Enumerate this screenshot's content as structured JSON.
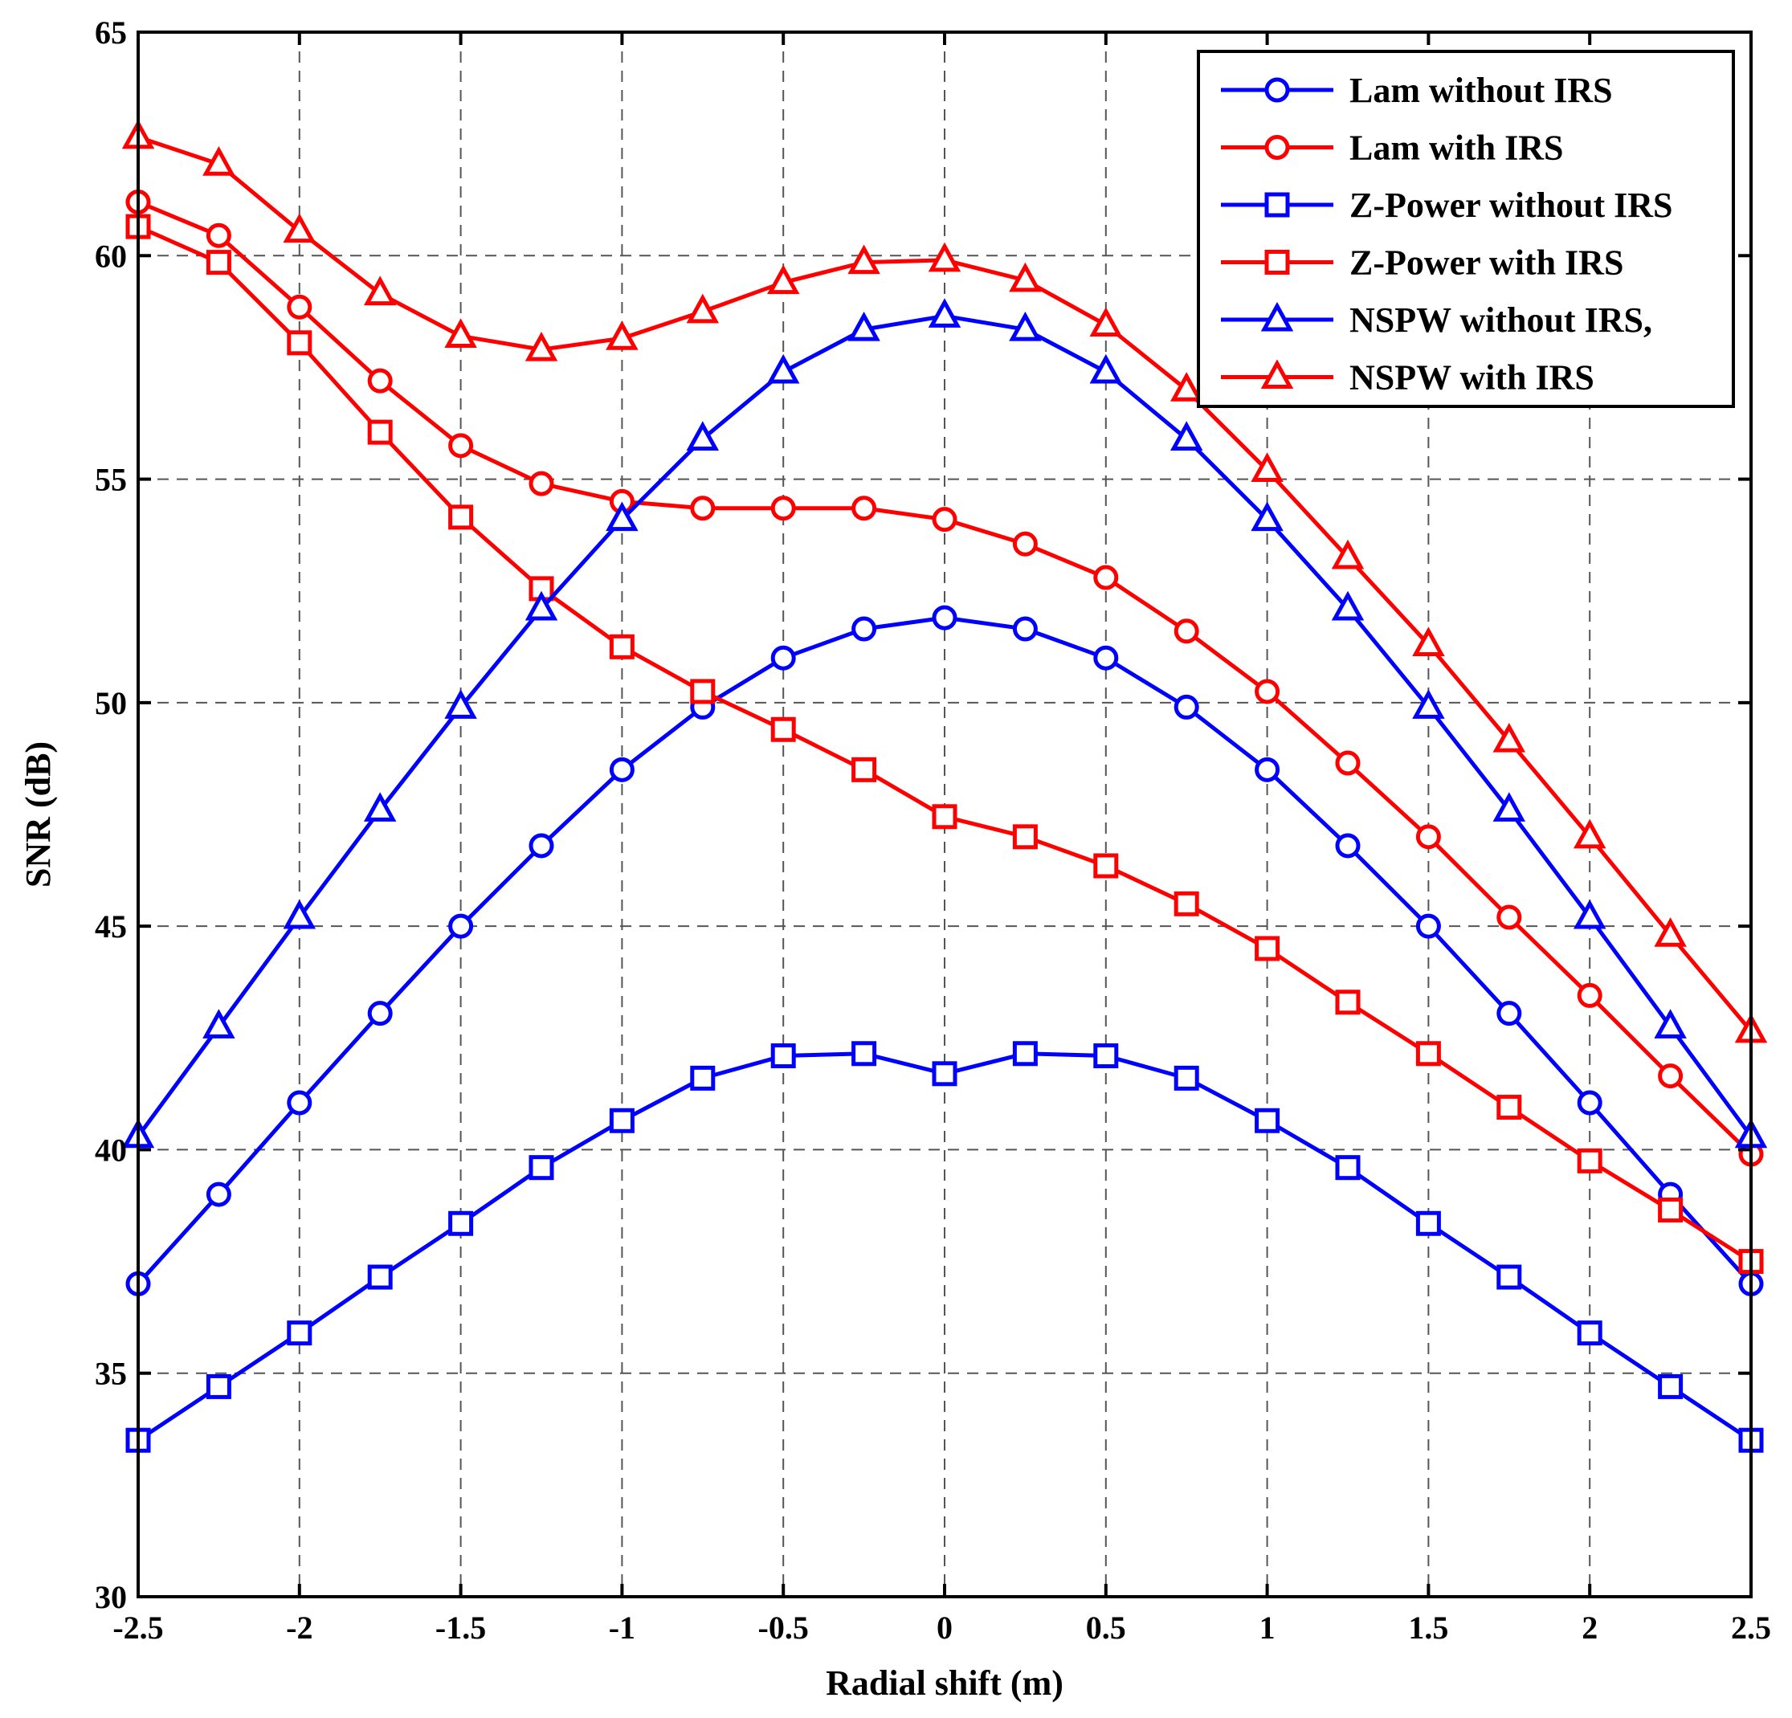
{
  "chart_data": {
    "type": "line",
    "title": "",
    "xlabel": "Radial shift (m)",
    "ylabel": "SNR (dB)",
    "xlim": [
      -2.5,
      2.5
    ],
    "ylim": [
      30,
      65
    ],
    "grid": true,
    "legend_position": "top-right",
    "x": [
      -2.5,
      -2.25,
      -2,
      -1.75,
      -1.5,
      -1.25,
      -1,
      -0.75,
      -0.5,
      -0.25,
      0,
      0.25,
      0.5,
      0.75,
      1,
      1.25,
      1.5,
      1.75,
      2,
      2.25,
      2.5
    ],
    "x_tick_labels": [
      "-2.5",
      "-2",
      "-1.5",
      "-1",
      "-0.5",
      "0",
      "0.5",
      "1",
      "1.5",
      "2",
      "2.5"
    ],
    "x_tick_values": [
      -2.5,
      -2,
      -1.5,
      -1,
      -0.5,
      0,
      0.5,
      1,
      1.5,
      2,
      2.5
    ],
    "y_tick_labels": [
      "30",
      "35",
      "40",
      "45",
      "50",
      "55",
      "60",
      "65"
    ],
    "y_tick_values": [
      30,
      35,
      40,
      45,
      50,
      55,
      60,
      65
    ],
    "series": [
      {
        "name": "Lam without IRS",
        "color": "#0000ff",
        "marker": "circle",
        "values": [
          37.0,
          39.0,
          41.05,
          43.05,
          45.0,
          46.8,
          48.5,
          49.9,
          51.0,
          51.65,
          51.9,
          51.65,
          51.0,
          49.9,
          48.5,
          46.8,
          45.0,
          43.05,
          41.05,
          39.0,
          37.0
        ]
      },
      {
        "name": "Lam with IRS",
        "color": "#ff0000",
        "marker": "circle",
        "values": [
          61.2,
          60.45,
          58.85,
          57.2,
          55.75,
          54.9,
          54.5,
          54.35,
          54.35,
          54.35,
          54.1,
          53.55,
          52.8,
          51.6,
          50.25,
          48.65,
          47.0,
          45.2,
          43.45,
          41.65,
          39.9
        ]
      },
      {
        "name": "Z-Power without IRS",
        "color": "#0000ff",
        "marker": "square",
        "values": [
          33.5,
          34.7,
          35.9,
          37.15,
          38.35,
          39.6,
          40.65,
          41.6,
          42.1,
          42.15,
          41.7,
          42.15,
          42.1,
          41.6,
          40.65,
          39.6,
          38.35,
          37.15,
          35.9,
          34.7,
          33.5
        ]
      },
      {
        "name": "Z-Power with IRS",
        "color": "#ff0000",
        "marker": "square",
        "values": [
          60.65,
          59.85,
          58.05,
          56.05,
          54.15,
          52.55,
          51.25,
          50.25,
          49.4,
          48.5,
          47.45,
          47.0,
          46.35,
          45.5,
          44.5,
          43.3,
          42.15,
          40.95,
          39.75,
          38.65,
          37.5
        ]
      },
      {
        "name": "NSPW without IRS,",
        "color": "#0000ff",
        "marker": "triangle",
        "values": [
          40.3,
          42.75,
          45.2,
          47.6,
          49.9,
          52.1,
          54.1,
          55.9,
          57.4,
          58.35,
          58.65,
          58.35,
          57.4,
          55.9,
          54.1,
          52.1,
          49.9,
          47.6,
          45.2,
          42.75,
          40.3
        ]
      },
      {
        "name": "NSPW with IRS",
        "color": "#ff0000",
        "marker": "triangle",
        "values": [
          62.65,
          62.05,
          60.55,
          59.15,
          58.2,
          57.9,
          58.15,
          58.75,
          59.4,
          59.85,
          59.9,
          59.45,
          58.45,
          57.0,
          55.2,
          53.25,
          51.3,
          49.15,
          47.0,
          44.8,
          42.65
        ]
      }
    ]
  }
}
